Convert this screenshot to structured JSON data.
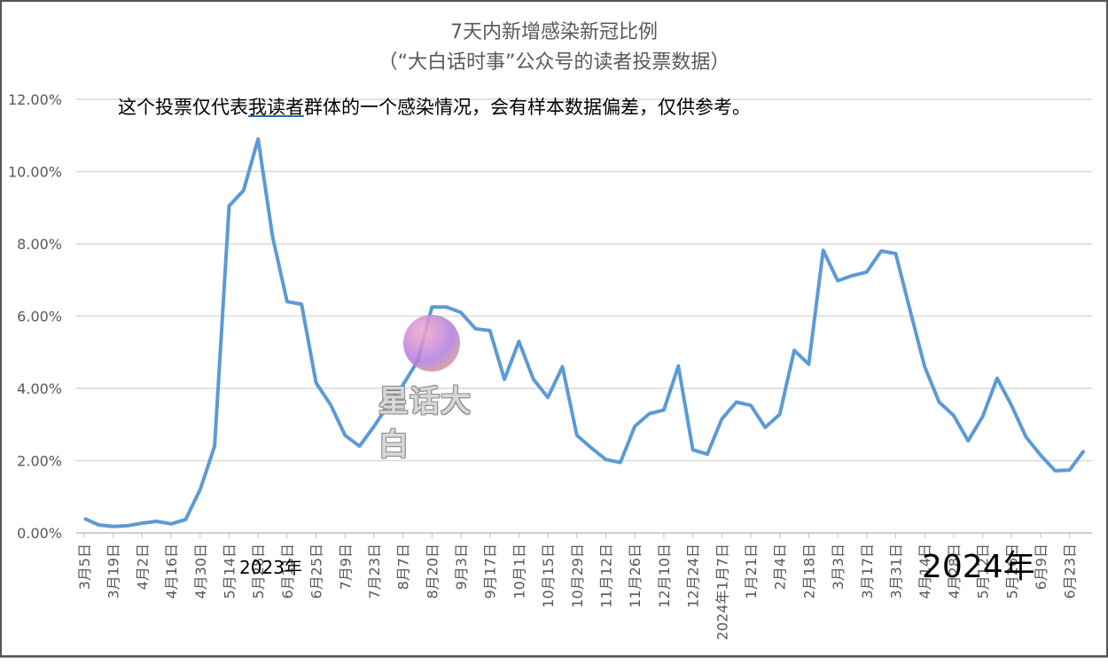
{
  "title": "7天内新增感染新冠比例",
  "subtitle": "（“大白话时事”公众号的读者投票数据）",
  "note": {
    "prefix": "这个投票仅代表",
    "link": "我读者",
    "suffix": "群体的一个感染情况，会有样本数据偏差，仅供参考。"
  },
  "year_labels": {
    "y2023": "2023年",
    "y2024": "2024年"
  },
  "watermark": {
    "text": "星话大白"
  },
  "colors": {
    "line": "#5b9bd5",
    "grid": "#d9d9d9",
    "text": "#595959"
  },
  "chart_data": {
    "type": "line",
    "ylim": [
      0,
      12
    ],
    "yticks": [
      "0.00%",
      "2.00%",
      "4.00%",
      "6.00%",
      "8.00%",
      "10.00%",
      "12.00%"
    ],
    "grid": true,
    "x_labels": [
      "3月5日",
      "3月19日",
      "4月2日",
      "4月16日",
      "4月30日",
      "5月14日",
      "5月28日",
      "6月11日",
      "6月25日",
      "7月9日",
      "7月23日",
      "8月7日",
      "8月20日",
      "9月3日",
      "9月17日",
      "10月1日",
      "10月15日",
      "10月29日",
      "11月12日",
      "11月26日",
      "12月10日",
      "12月24日",
      "2024年1月7日",
      "1月21日",
      "2月4日",
      "2月18日",
      "3月3日",
      "3月17日",
      "3月31日",
      "4月14日",
      "4月28日",
      "5月12日",
      "5月26日",
      "6月9日",
      "6月23日"
    ],
    "series": [
      {
        "values": [
          0.4,
          0.22,
          0.18,
          0.2,
          0.27,
          0.32,
          0.25,
          0.37,
          1.2,
          2.4,
          9.05,
          9.48,
          10.9,
          8.2,
          6.4,
          6.33,
          4.15,
          3.55,
          2.7,
          2.4,
          2.95,
          3.55,
          4.1,
          4.75,
          6.25,
          6.25,
          6.1,
          5.65,
          5.6,
          4.25,
          5.3,
          4.25,
          3.75,
          4.6,
          2.7,
          2.35,
          2.03,
          1.95,
          2.95,
          3.3,
          3.4,
          4.62,
          2.3,
          2.18,
          3.15,
          3.62,
          3.53,
          2.92,
          3.28,
          5.05,
          4.67,
          7.82,
          6.98,
          7.12,
          7.22,
          7.8,
          7.73,
          6.15,
          4.6,
          3.62,
          3.25,
          2.55,
          3.22,
          4.28,
          3.52,
          2.65,
          2.15,
          1.72,
          1.74,
          2.28
        ]
      }
    ]
  }
}
